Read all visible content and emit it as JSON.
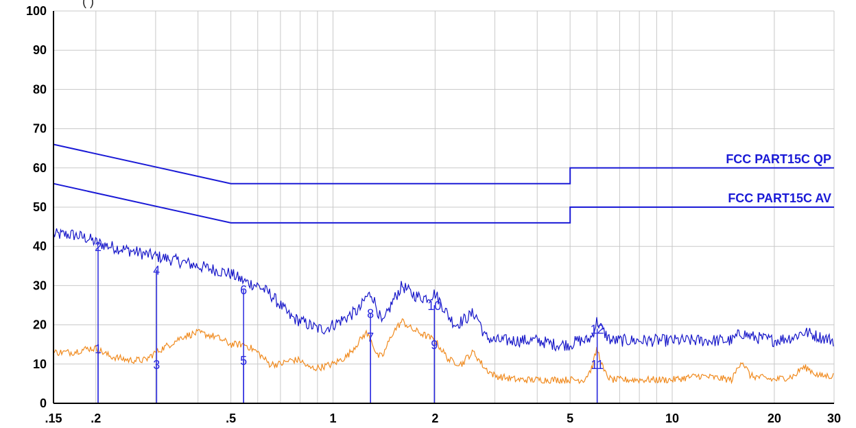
{
  "header": {
    "fragment": "(     )"
  },
  "chart_data": {
    "type": "line",
    "x_scale": "log",
    "xlim": [
      0.15,
      30
    ],
    "ylim": [
      0,
      100
    ],
    "grid": true,
    "y_ticks": [
      {
        "value": 0,
        "label": "0"
      },
      {
        "value": 10,
        "label": "10"
      },
      {
        "value": 20,
        "label": "20"
      },
      {
        "value": 30,
        "label": "30"
      },
      {
        "value": 40,
        "label": "40"
      },
      {
        "value": 50,
        "label": "50"
      },
      {
        "value": 60,
        "label": "60"
      },
      {
        "value": 70,
        "label": "70"
      },
      {
        "value": 80,
        "label": "80"
      },
      {
        "value": 90,
        "label": "90"
      },
      {
        "value": 100,
        "label": "100"
      }
    ],
    "x_ticks": [
      {
        "value": 0.15,
        "label": ".15"
      },
      {
        "value": 0.2,
        "label": ".2"
      },
      {
        "value": 0.5,
        "label": ".5"
      },
      {
        "value": 1,
        "label": "1"
      },
      {
        "value": 2,
        "label": "2"
      },
      {
        "value": 5,
        "label": "5"
      },
      {
        "value": 10,
        "label": "10"
      },
      {
        "value": 20,
        "label": "20"
      },
      {
        "value": 30,
        "label": "30"
      }
    ],
    "x_gridlines": [
      0.15,
      0.2,
      0.3,
      0.4,
      0.5,
      0.6,
      0.7,
      0.8,
      0.9,
      1,
      2,
      3,
      4,
      5,
      6,
      7,
      8,
      9,
      10,
      20,
      30
    ],
    "limits": [
      {
        "name": "FCC PART15C QP",
        "color": "#1a1ad6",
        "x": [
          0.15,
          0.5,
          5,
          5,
          30
        ],
        "y": [
          66,
          56,
          56,
          60,
          60
        ]
      },
      {
        "name": "FCC PART15C AV",
        "color": "#1a1ad6",
        "x": [
          0.15,
          0.5,
          5,
          5,
          30
        ],
        "y": [
          56,
          46,
          46,
          50,
          50
        ]
      }
    ],
    "series": [
      {
        "color": "#1414c8",
        "noise": 1.6,
        "x": [
          0.15,
          0.17,
          0.19,
          0.2,
          0.22,
          0.25,
          0.28,
          0.32,
          0.36,
          0.4,
          0.45,
          0.5,
          0.55,
          0.6,
          0.65,
          0.7,
          0.75,
          0.8,
          0.85,
          0.9,
          0.95,
          1.0,
          1.05,
          1.1,
          1.15,
          1.2,
          1.25,
          1.3,
          1.35,
          1.4,
          1.5,
          1.6,
          1.7,
          1.8,
          1.9,
          2.0,
          2.1,
          2.2,
          2.3,
          2.4,
          2.5,
          2.6,
          2.7,
          2.8,
          3.0,
          3.5,
          4.0,
          4.5,
          5.0,
          5.3,
          5.6,
          5.8,
          6.0,
          6.3,
          6.6,
          7,
          8,
          10,
          12,
          15,
          16,
          17,
          20,
          23,
          24,
          25,
          27,
          30
        ],
        "y": [
          43,
          43,
          42,
          41,
          40,
          39,
          38,
          37,
          36,
          35,
          34,
          33,
          31,
          30,
          28,
          25,
          22,
          21,
          20,
          19,
          19,
          20,
          21,
          22,
          23,
          24,
          27,
          28,
          24,
          20,
          26,
          30,
          28,
          27,
          27,
          28,
          25,
          22,
          20,
          21,
          22,
          23,
          21,
          17,
          16,
          16,
          16,
          15,
          15,
          16,
          16,
          17,
          21,
          18,
          16,
          16,
          16,
          16,
          16,
          16,
          18,
          17,
          16,
          17,
          18,
          18,
          17,
          16
        ]
      },
      {
        "color": "#f08a1e",
        "noise": 0.9,
        "x": [
          0.15,
          0.17,
          0.19,
          0.2,
          0.22,
          0.25,
          0.28,
          0.3,
          0.33,
          0.36,
          0.4,
          0.45,
          0.5,
          0.55,
          0.6,
          0.65,
          0.7,
          0.75,
          0.8,
          0.85,
          0.9,
          1.0,
          1.1,
          1.2,
          1.25,
          1.3,
          1.35,
          1.4,
          1.5,
          1.6,
          1.7,
          1.8,
          1.9,
          2.0,
          2.2,
          2.4,
          2.5,
          2.6,
          2.8,
          3.0,
          3.5,
          4,
          4.5,
          5,
          5.5,
          5.8,
          6.0,
          6.3,
          6.6,
          7,
          8,
          10,
          12,
          15,
          16,
          17,
          20,
          23,
          24,
          25,
          27,
          30
        ],
        "y": [
          13,
          13,
          14,
          14,
          12,
          11,
          11,
          13,
          15,
          17,
          18,
          17,
          15,
          15,
          13,
          10,
          10,
          11,
          11,
          9,
          9,
          10,
          12,
          16,
          18,
          16,
          12,
          12,
          18,
          21,
          19,
          18,
          17,
          16,
          11,
          10,
          12,
          13,
          9,
          7,
          6,
          6,
          6,
          6,
          6,
          9,
          14,
          8,
          6,
          6,
          6,
          6,
          7,
          6,
          11,
          7,
          6,
          7,
          9,
          9,
          7,
          7
        ]
      }
    ],
    "markers": [
      {
        "label": "1",
        "x": 0.203,
        "y": 14
      },
      {
        "label": "2",
        "x": 0.203,
        "y": 40
      },
      {
        "label": "3",
        "x": 0.302,
        "y": 10
      },
      {
        "label": "4",
        "x": 0.302,
        "y": 34
      },
      {
        "label": "5",
        "x": 0.545,
        "y": 11
      },
      {
        "label": "6",
        "x": 0.545,
        "y": 29
      },
      {
        "label": "7",
        "x": 1.29,
        "y": 17
      },
      {
        "label": "8",
        "x": 1.29,
        "y": 23
      },
      {
        "label": "9",
        "x": 1.99,
        "y": 15
      },
      {
        "label": "10",
        "x": 1.99,
        "y": 25
      },
      {
        "label": "11",
        "x": 6.01,
        "y": 10
      },
      {
        "label": "12",
        "x": 6.01,
        "y": 19
      }
    ],
    "marker_color": "#2a2adf"
  }
}
